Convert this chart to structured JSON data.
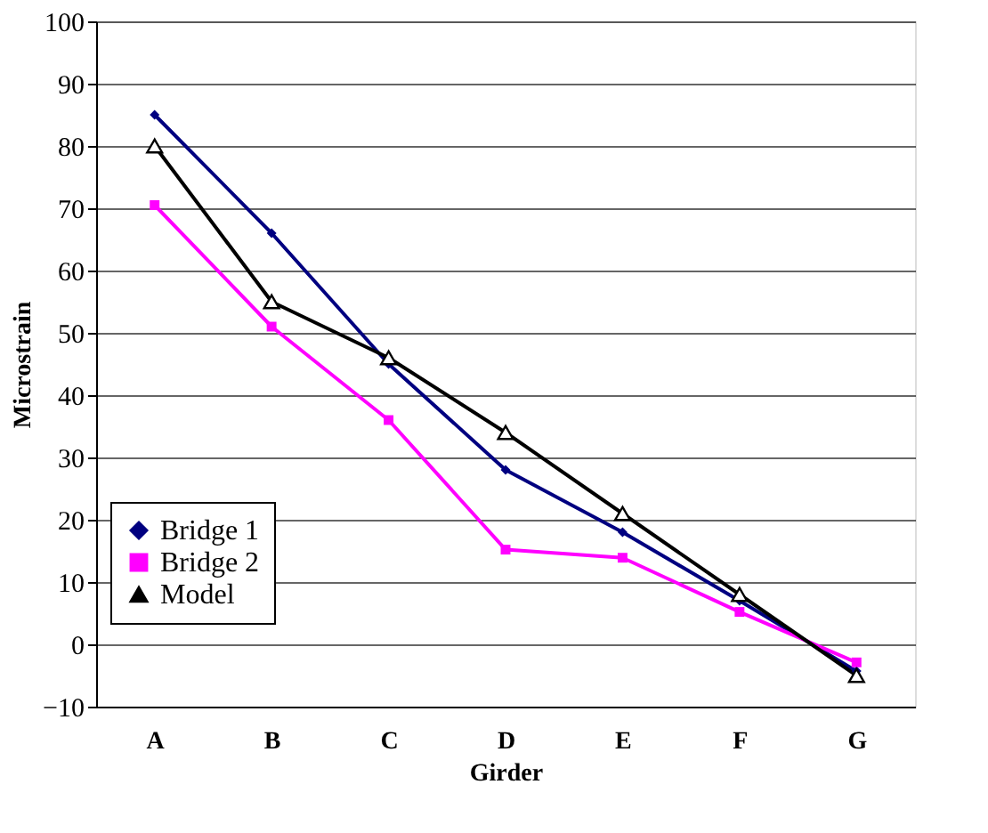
{
  "chart_data": {
    "type": "line",
    "xlabel": "Girder",
    "ylabel": "Microstrain",
    "categories": [
      "A",
      "B",
      "C",
      "D",
      "E",
      "F",
      "G"
    ],
    "series": [
      {
        "name": "Bridge 1",
        "color": "#000080",
        "marker": "diamond",
        "values": [
          85,
          66,
          45,
          28,
          18,
          7,
          -4.3
        ]
      },
      {
        "name": "Bridge 2",
        "color": "#ff00ff",
        "marker": "square",
        "values": [
          70.5,
          51,
          36,
          15.2,
          13.9,
          5.2,
          -2.9
        ]
      },
      {
        "name": "Model",
        "color": "#000000",
        "marker": "triangle",
        "values": [
          80,
          55,
          46,
          34,
          21,
          8,
          -5
        ]
      }
    ],
    "ylim": [
      -10,
      100
    ],
    "yticks": [
      -10,
      0,
      10,
      20,
      30,
      40,
      50,
      60,
      70,
      80,
      90,
      100
    ],
    "grid": "y",
    "legend": "bottom left",
    "line_style": "solid"
  }
}
